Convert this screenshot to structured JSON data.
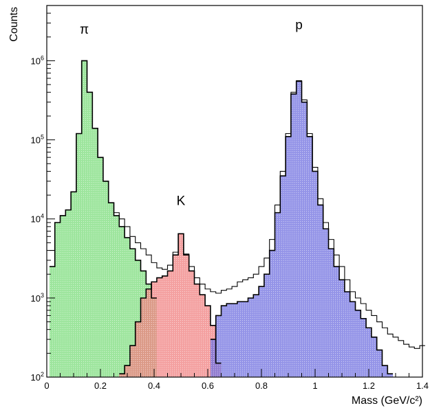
{
  "chart_data": {
    "type": "area",
    "title": "",
    "xlabel": "Mass (GeV/c²)",
    "ylabel": "Counts",
    "x_scale": "linear",
    "y_scale": "log",
    "xlim": [
      0,
      1.4
    ],
    "ylim": [
      100,
      5000000
    ],
    "grid": false,
    "x_ticks": [
      {
        "value": 0,
        "label": "0"
      },
      {
        "value": 0.2,
        "label": "0.2"
      },
      {
        "value": 0.4,
        "label": "0.4"
      },
      {
        "value": 0.6,
        "label": "0.6"
      },
      {
        "value": 0.8,
        "label": "0.8"
      },
      {
        "value": 1.0,
        "label": "1"
      },
      {
        "value": 1.2,
        "label": "1.2"
      },
      {
        "value": 1.4,
        "label": "1.4"
      }
    ],
    "y_ticks": [
      {
        "value": 100,
        "base": "10",
        "exp": "2"
      },
      {
        "value": 1000,
        "base": "10",
        "exp": "3"
      },
      {
        "value": 10000,
        "base": "10",
        "exp": "4"
      },
      {
        "value": 100000,
        "base": "10",
        "exp": "5"
      },
      {
        "value": 1000000,
        "base": "10",
        "exp": "6"
      }
    ],
    "annotations": [
      {
        "text": "π",
        "x": 0.14,
        "y": 2200000
      },
      {
        "text": "K",
        "x": 0.5,
        "y": 15000
      },
      {
        "text": "p",
        "x": 0.94,
        "y": 2500000
      }
    ],
    "series": [
      {
        "kind": "total",
        "color": "#000000",
        "x": [
          0.02,
          0.04,
          0.06,
          0.08,
          0.1,
          0.12,
          0.14,
          0.16,
          0.18,
          0.2,
          0.22,
          0.24,
          0.26,
          0.28,
          0.3,
          0.32,
          0.34,
          0.36,
          0.38,
          0.4,
          0.42,
          0.44,
          0.46,
          0.48,
          0.5,
          0.52,
          0.54,
          0.56,
          0.58,
          0.6,
          0.62,
          0.64,
          0.66,
          0.68,
          0.7,
          0.72,
          0.74,
          0.76,
          0.78,
          0.8,
          0.82,
          0.84,
          0.86,
          0.88,
          0.9,
          0.92,
          0.94,
          0.96,
          0.98,
          1.0,
          1.02,
          1.04,
          1.06,
          1.08,
          1.1,
          1.12,
          1.14,
          1.16,
          1.18,
          1.2,
          1.22,
          1.24,
          1.26,
          1.28,
          1.3,
          1.32,
          1.34,
          1.36,
          1.38,
          1.4
        ],
        "y": [
          4000,
          9000,
          11000,
          13000,
          22000,
          120000,
          1000000,
          400000,
          140000,
          60000,
          30000,
          16000,
          12000,
          10000,
          8000,
          6000,
          5000,
          4200,
          3500,
          2800,
          2400,
          2300,
          2600,
          3800,
          6500,
          3600,
          2500,
          1800,
          1500,
          1300,
          1200,
          1150,
          1250,
          1300,
          1400,
          1600,
          1700,
          1800,
          2000,
          2500,
          3200,
          5500,
          15000,
          40000,
          120000,
          400000,
          560000,
          320000,
          120000,
          45000,
          18000,
          9000,
          5500,
          3500,
          2500,
          1700,
          1200,
          1000,
          850,
          700,
          600,
          500,
          420,
          350,
          320,
          290,
          260,
          240,
          230,
          250
        ]
      },
      {
        "kind": "species",
        "name": "π",
        "color": "#7cdc7c",
        "x": [
          0.02,
          0.04,
          0.06,
          0.08,
          0.1,
          0.12,
          0.14,
          0.16,
          0.18,
          0.2,
          0.22,
          0.24,
          0.26,
          0.28,
          0.3,
          0.32,
          0.34,
          0.36,
          0.38,
          0.4
        ],
        "y": [
          2500,
          9000,
          11000,
          13000,
          22000,
          120000,
          1000000,
          400000,
          140000,
          60000,
          30000,
          16000,
          11000,
          8000,
          5800,
          4200,
          3000,
          2200,
          1500,
          1000
        ]
      },
      {
        "kind": "species",
        "name": "K",
        "color": "#f08080",
        "x": [
          0.28,
          0.3,
          0.32,
          0.34,
          0.36,
          0.38,
          0.4,
          0.42,
          0.44,
          0.46,
          0.48,
          0.5,
          0.52,
          0.54,
          0.56,
          0.58,
          0.6,
          0.62,
          0.64
        ],
        "y": [
          110,
          140,
          250,
          500,
          1000,
          1300,
          1600,
          1800,
          1900,
          2200,
          3500,
          6500,
          3500,
          2200,
          1500,
          1100,
          800,
          450,
          150
        ]
      },
      {
        "kind": "species",
        "name": "p",
        "color": "#7070e0",
        "x": [
          0.62,
          0.64,
          0.66,
          0.68,
          0.7,
          0.72,
          0.74,
          0.76,
          0.78,
          0.8,
          0.82,
          0.84,
          0.86,
          0.88,
          0.9,
          0.92,
          0.94,
          0.96,
          0.98,
          1.0,
          1.02,
          1.04,
          1.06,
          1.08,
          1.1,
          1.12,
          1.14,
          1.16,
          1.18,
          1.2,
          1.22,
          1.24,
          1.26,
          1.28
        ],
        "y": [
          300,
          600,
          800,
          850,
          850,
          900,
          900,
          1000,
          1100,
          1400,
          2000,
          4000,
          12000,
          35000,
          110000,
          380000,
          550000,
          300000,
          110000,
          40000,
          15000,
          7500,
          4200,
          2500,
          1700,
          1200,
          900,
          700,
          550,
          420,
          320,
          220,
          140,
          110
        ]
      }
    ]
  }
}
